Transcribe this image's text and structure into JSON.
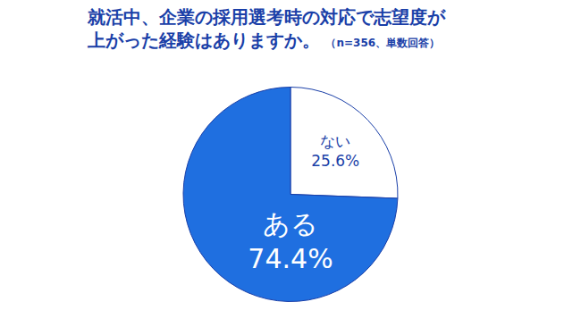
{
  "chart_data": {
    "type": "pie",
    "title": "就活中、企業の採用選考時の対応で志望度が\n上がった経験はありますか。",
    "subtitle": "（n=356、単数回答）",
    "categories": [
      "ない",
      "ある"
    ],
    "values": [
      25.6,
      74.4
    ],
    "value_labels": [
      "25.6%",
      "74.4%"
    ],
    "colors": [
      "#ffffff",
      "#1f6fe0"
    ],
    "data_labels": true
  }
}
